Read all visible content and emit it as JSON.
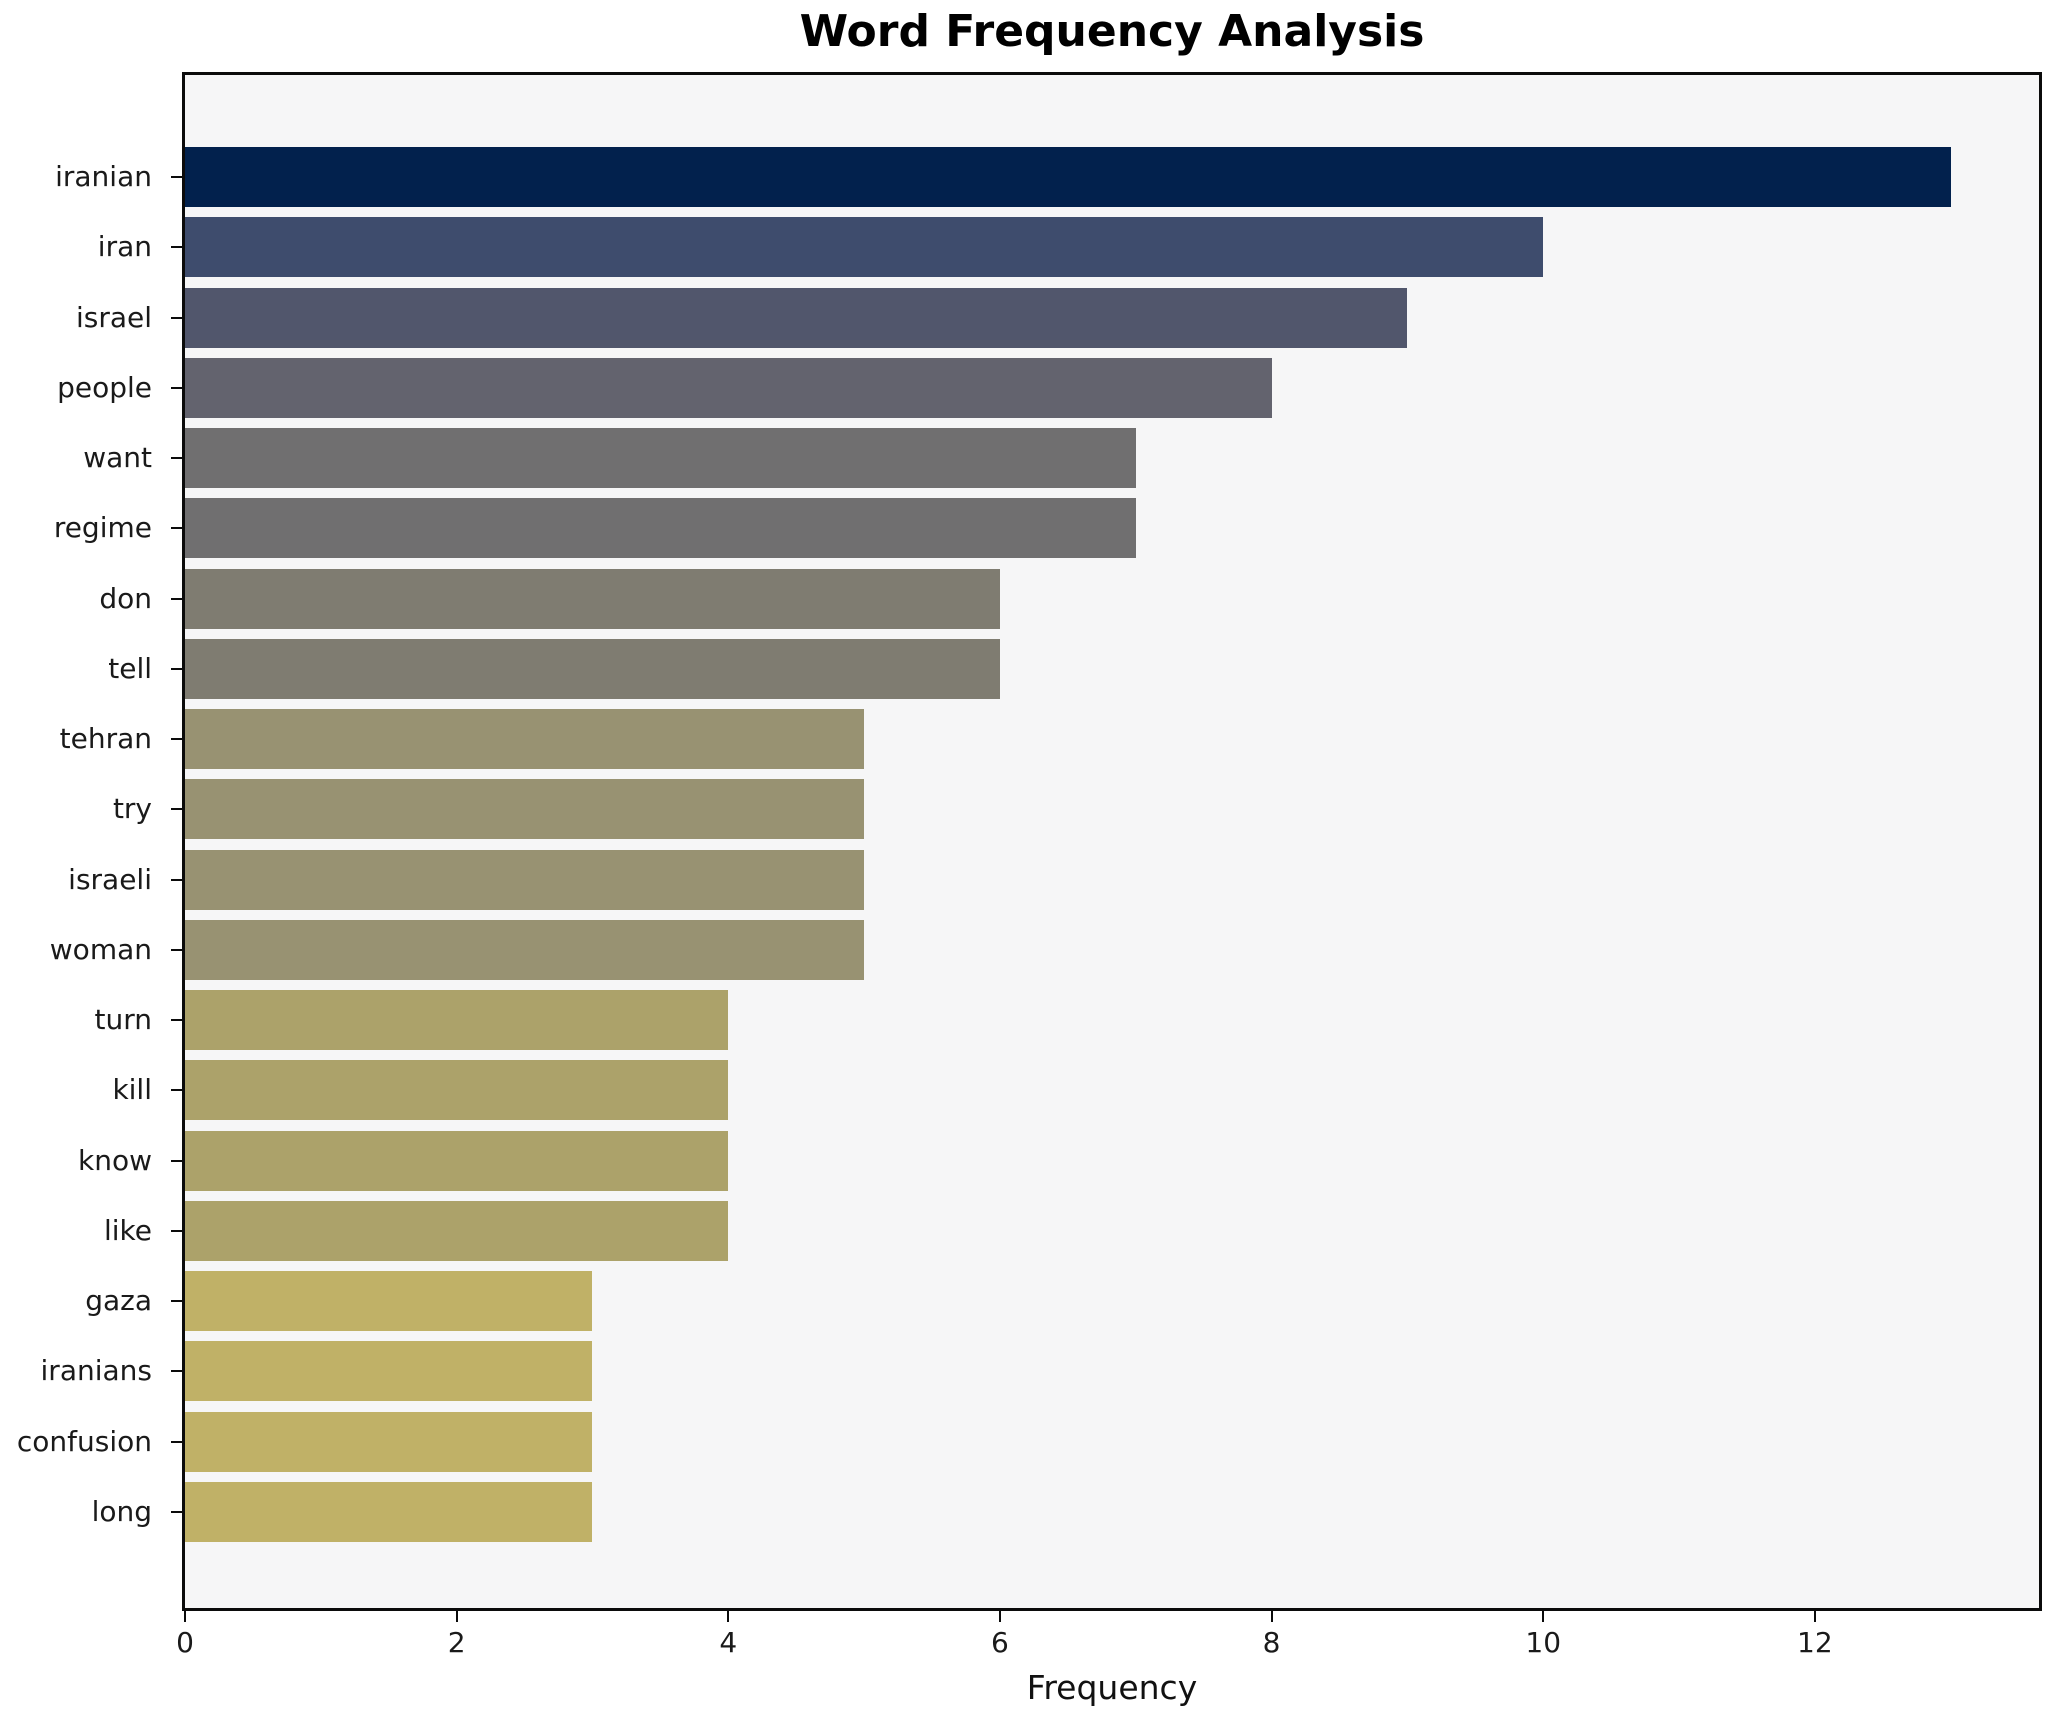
{
  "title": "Word Frequency Analysis",
  "axis": {
    "xlabel": "Frequency",
    "x_ticks": [
      0,
      2,
      4,
      6,
      8,
      10,
      12
    ],
    "x_max": 13.65
  },
  "colors": {
    "plot_background": "#f6f6f7",
    "figure_background": "#ffffff",
    "spine": "#0b0b0b",
    "tick_label": "#1a1a1a",
    "colormap": "cividis"
  },
  "chart_data": {
    "type": "bar",
    "orientation": "horizontal",
    "title": "Word Frequency Analysis",
    "xlabel": "Frequency",
    "ylabel": "",
    "xlim": [
      0,
      13.65
    ],
    "grid": false,
    "legend": null,
    "categories": [
      "iranian",
      "iran",
      "israel",
      "people",
      "want",
      "regime",
      "don",
      "tell",
      "tehran",
      "try",
      "israeli",
      "woman",
      "turn",
      "kill",
      "know",
      "like",
      "gaza",
      "iranians",
      "confusion",
      "long"
    ],
    "values": [
      13,
      10,
      9,
      8,
      7,
      7,
      6,
      6,
      5,
      5,
      5,
      5,
      4,
      4,
      4,
      4,
      3,
      3,
      3,
      3
    ],
    "bar_colors": [
      "#02214d",
      "#3e4c6d",
      "#51566c",
      "#63636e",
      "#706f70",
      "#706f70",
      "#7f7c71",
      "#7f7c71",
      "#989272",
      "#989272",
      "#989272",
      "#989272",
      "#aca26a",
      "#aca26a",
      "#aca26a",
      "#aca26a",
      "#c0b167",
      "#c0b167",
      "#c0b167",
      "#c0b167"
    ]
  }
}
